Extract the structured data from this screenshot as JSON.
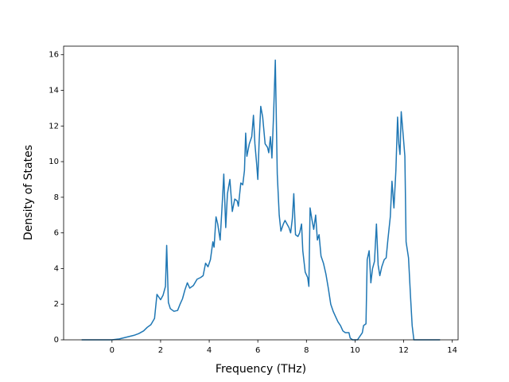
{
  "chart_data": {
    "type": "line",
    "x_label": "Frequency (THz)",
    "y_label": "Density of States",
    "color": "#1f77b4",
    "x": [
      -1.25,
      0,
      0.3,
      0.6,
      0.9,
      1.1,
      1.3,
      1.45,
      1.6,
      1.75,
      1.85,
      2.0,
      2.1,
      2.2,
      2.25,
      2.32,
      2.4,
      2.55,
      2.7,
      2.8,
      2.9,
      3.0,
      3.1,
      3.2,
      3.35,
      3.5,
      3.65,
      3.75,
      3.85,
      3.95,
      4.05,
      4.15,
      4.2,
      4.28,
      4.35,
      4.45,
      4.55,
      4.6,
      4.68,
      4.75,
      4.85,
      4.95,
      5.05,
      5.15,
      5.2,
      5.3,
      5.38,
      5.45,
      5.5,
      5.55,
      5.65,
      5.75,
      5.82,
      5.88,
      5.95,
      6.0,
      6.05,
      6.12,
      6.2,
      6.3,
      6.4,
      6.45,
      6.52,
      6.58,
      6.65,
      6.72,
      6.8,
      6.88,
      6.95,
      7.05,
      7.12,
      7.2,
      7.28,
      7.35,
      7.42,
      7.48,
      7.55,
      7.65,
      7.72,
      7.8,
      7.85,
      7.95,
      8.05,
      8.1,
      8.15,
      8.22,
      8.3,
      8.38,
      8.45,
      8.52,
      8.6,
      8.7,
      8.8,
      8.9,
      9.0,
      9.1,
      9.2,
      9.3,
      9.4,
      9.5,
      9.6,
      9.75,
      9.8,
      9.9,
      10.1,
      10.2,
      10.3,
      10.35,
      10.45,
      10.5,
      10.58,
      10.65,
      10.72,
      10.8,
      10.88,
      10.95,
      11.02,
      11.1,
      11.2,
      11.28,
      11.35,
      11.45,
      11.52,
      11.6,
      11.68,
      11.75,
      11.8,
      11.85,
      11.9,
      11.98,
      12.05,
      12.1,
      12.2,
      12.28,
      12.35,
      12.42,
      13.5
    ],
    "values": [
      0,
      0,
      0.05,
      0.15,
      0.25,
      0.35,
      0.5,
      0.7,
      0.85,
      1.2,
      2.55,
      2.25,
      2.5,
      3.0,
      5.3,
      2.1,
      1.75,
      1.6,
      1.65,
      2.0,
      2.3,
      2.8,
      3.2,
      2.9,
      3.05,
      3.4,
      3.5,
      3.6,
      4.3,
      4.1,
      4.5,
      5.5,
      5.2,
      6.9,
      6.5,
      5.6,
      8.0,
      9.3,
      6.3,
      8.2,
      9.0,
      7.2,
      7.9,
      7.8,
      7.5,
      8.8,
      8.7,
      9.5,
      11.6,
      10.3,
      11.0,
      11.4,
      12.6,
      11.0,
      9.9,
      9.0,
      11.0,
      13.1,
      12.5,
      11.0,
      10.8,
      10.5,
      11.4,
      10.2,
      12.7,
      15.7,
      9.3,
      7.0,
      6.1,
      6.5,
      6.7,
      6.5,
      6.3,
      6.0,
      6.8,
      8.2,
      5.9,
      5.8,
      6.0,
      6.5,
      5.0,
      3.8,
      3.5,
      3.0,
      7.4,
      6.8,
      6.2,
      7.0,
      5.6,
      5.9,
      4.7,
      4.3,
      3.7,
      2.9,
      2.0,
      1.6,
      1.3,
      1.0,
      0.8,
      0.5,
      0.4,
      0.4,
      0.1,
      0,
      0,
      0.2,
      0.4,
      0.8,
      0.9,
      4.5,
      5.0,
      3.2,
      4.0,
      4.4,
      6.5,
      4.2,
      3.6,
      4.1,
      4.5,
      4.6,
      5.6,
      6.9,
      8.9,
      7.4,
      9.5,
      12.5,
      11.0,
      10.4,
      12.8,
      11.5,
      10.3,
      5.5,
      4.6,
      2.5,
      0.8,
      0,
      0
    ],
    "xlim": [
      -1.99,
      14.24
    ],
    "xticks": [
      0,
      2,
      4,
      6,
      8,
      10,
      12,
      14
    ],
    "ylim": [
      0,
      16.48
    ],
    "yticks": [
      0,
      2,
      4,
      6,
      8,
      10,
      12,
      14,
      16
    ]
  }
}
